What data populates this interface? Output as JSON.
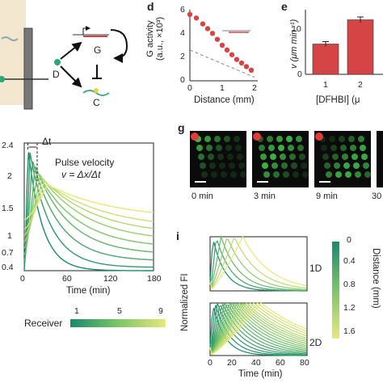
{
  "panels": {
    "d": {
      "label": "d",
      "ylabel_line1": "G activity",
      "ylabel_line2": "(a.u., ×10³)",
      "xlabel": "Distance (mm)",
      "yticks": [
        "6",
        "4",
        "2",
        "0"
      ],
      "xticks": [
        "0",
        "1",
        "2"
      ]
    },
    "e": {
      "label": "e",
      "ylabel": "v (μm min⁻¹)",
      "yticks": [
        "10",
        "0"
      ],
      "xticks": [
        "1",
        "2"
      ],
      "xlabel": "[DFHBI] (μ"
    },
    "f": {
      "pulse_title": "Pulse velocity",
      "pulse_eq": "v = Δx/Δt",
      "dt_label": "Δt",
      "yticks": [
        "2.4",
        "2",
        "1.5",
        "1",
        "0.7",
        "0.4"
      ],
      "xticks": [
        "0",
        "60",
        "120",
        "180"
      ],
      "xlabel": "Time (min)",
      "colorbar_label": "Receiver",
      "colorbar_min": "1",
      "colorbar_mid": "5",
      "colorbar_max": "9"
    },
    "g": {
      "label": "g",
      "times": [
        "0 min",
        "3 min",
        "9 min",
        "30"
      ]
    },
    "i": {
      "label": "i",
      "ylabel": "Normalized FI",
      "xlabel": "Time (min)",
      "xticks": [
        "0",
        "20",
        "40",
        "60",
        "80"
      ],
      "tag_top": "1D",
      "tag_bottom": "2D",
      "colorbar_title": "Distance (mm)",
      "colorbar_ticks": [
        "0",
        "0.4",
        "0.8",
        "1.2",
        "1.6"
      ]
    },
    "diagram": {
      "node_g": "G",
      "node_d": "D",
      "node_c": "C"
    }
  },
  "chart_data": [
    {
      "type": "scatter",
      "panel": "d",
      "xlabel": "Distance (mm)",
      "ylabel": "G activity (a.u., ×10³)",
      "xlim": [
        0,
        2
      ],
      "ylim": [
        0,
        6
      ],
      "x": [
        0.0,
        0.2,
        0.4,
        0.55,
        0.7,
        0.85,
        1.0,
        1.15,
        1.3,
        1.45,
        1.6,
        1.75,
        1.9
      ],
      "y": [
        5.6,
        5.3,
        4.8,
        4.4,
        4.0,
        3.5,
        3.0,
        2.6,
        2.2,
        1.8,
        1.5,
        1.2,
        0.9
      ],
      "colors": {
        "points": "#d64545",
        "fit": "#888888"
      }
    },
    {
      "type": "bar",
      "panel": "e",
      "categories": [
        "1",
        "2"
      ],
      "values": [
        7.5,
        13.5
      ],
      "errors": [
        0.6,
        0.7
      ],
      "ylim": [
        0,
        16
      ],
      "colors": {
        "bar": "#d64545"
      }
    },
    {
      "type": "line",
      "panel": "f",
      "xlabel": "Time (min)",
      "xlim": [
        0,
        180
      ],
      "ylim": [
        0.4,
        2.4
      ],
      "peak_times": [
        5,
        8,
        11,
        15,
        18,
        22,
        25,
        28,
        32
      ],
      "peak_values": [
        2.35,
        2.25,
        2.15,
        2.05,
        1.95,
        1.9,
        1.85,
        1.8,
        1.75
      ],
      "baselines": [
        0.4,
        0.45,
        0.55,
        0.65,
        0.75,
        0.85,
        0.95,
        1.05,
        1.2
      ],
      "colorscale": [
        "#1b8a6b",
        "#e8e87a"
      ]
    },
    {
      "type": "line",
      "panel": "i-1D",
      "xlim": [
        0,
        80
      ],
      "ylim": [
        0,
        1
      ],
      "peak_times": [
        2,
        5,
        9,
        14,
        20,
        27
      ],
      "colorscale": [
        "#1b8a6b",
        "#e8e87a"
      ]
    },
    {
      "type": "line",
      "panel": "i-2D",
      "xlim": [
        0,
        80
      ],
      "ylim": [
        0,
        1
      ],
      "peak_times": [
        2,
        4,
        6,
        8,
        10,
        12,
        14,
        16,
        18,
        20,
        22,
        24,
        26,
        28,
        30,
        33,
        36,
        39,
        42
      ],
      "colorscale": [
        "#1b8a6b",
        "#e8e87a"
      ]
    }
  ]
}
